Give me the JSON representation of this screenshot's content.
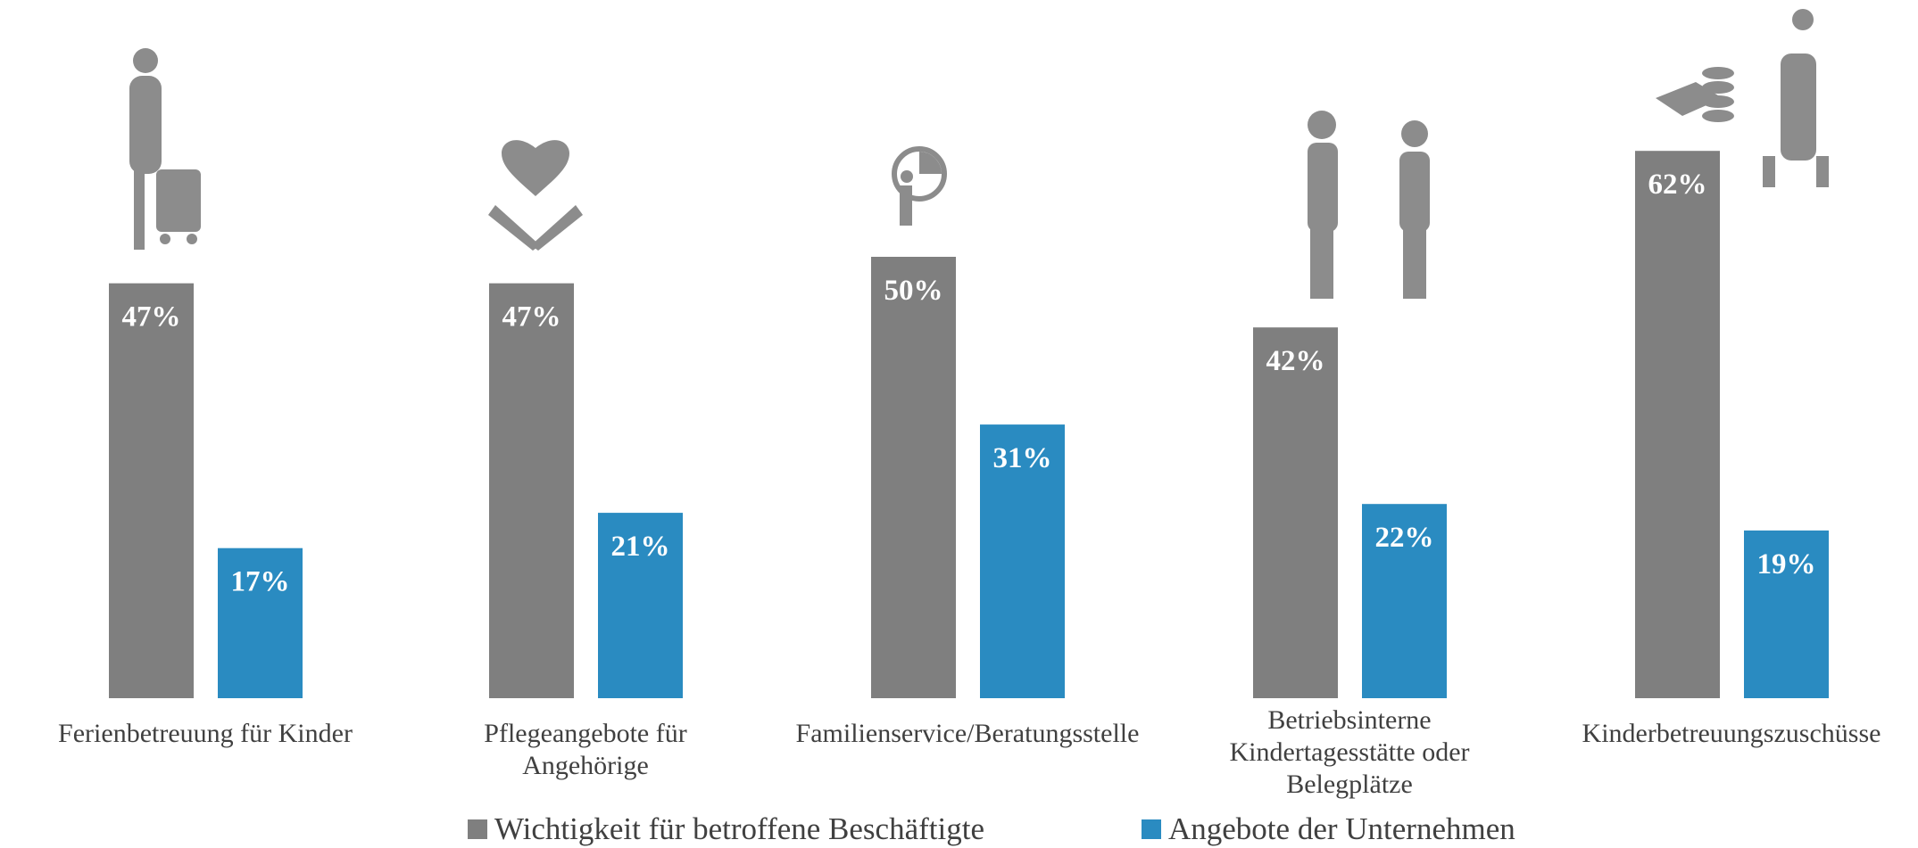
{
  "chart_data": {
    "type": "bar",
    "categories": [
      "Ferienbetreuung für Kinder",
      "Pflegeangebote für Angehörige",
      "Familienservice/Beratungsstelle",
      "Betriebsinterne Kindertagesstätte oder Belegplätze",
      "Kinderbetreuungszuschüsse"
    ],
    "series": [
      {
        "name": "Wichtigkeit für betroffene Beschäftigte",
        "color": "#7f7f7f",
        "values": [
          47,
          47,
          50,
          42,
          62
        ],
        "value_labels": [
          "47%",
          "47%",
          "50%",
          "42%",
          "62%"
        ]
      },
      {
        "name": "Angebote der Unternehmen",
        "color": "#2a8bc1",
        "values": [
          17,
          21,
          31,
          22,
          19
        ],
        "value_labels": [
          "17%",
          "21%",
          "31%",
          "22%",
          "19%"
        ]
      }
    ],
    "legend": "bottom"
  }
}
